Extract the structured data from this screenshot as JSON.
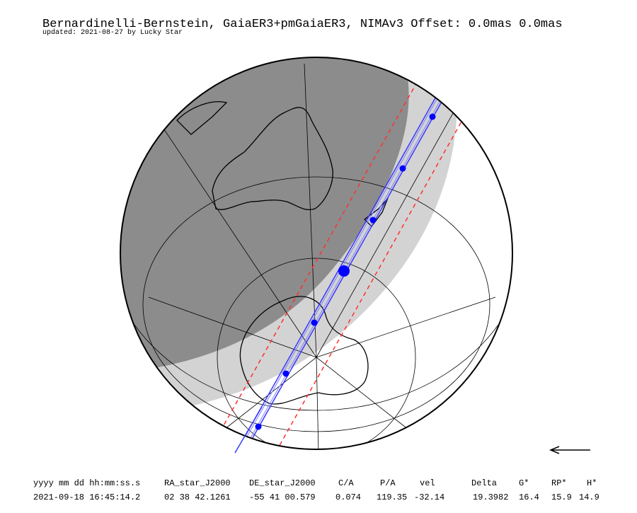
{
  "header": {
    "title": "Bernardinelli-Bernstein, GaiaER3+pmGaiaER3, NIMAv3  Offset: 0.0mas 0.0mas",
    "subtitle": "updated: 2021-08-27 by Lucky Star"
  },
  "table": {
    "columns": [
      "yyyy mm dd hh:mm:ss.s",
      "RA_star_J2000",
      "DE_star_J2000",
      "C/A",
      "P/A",
      "vel",
      "Delta",
      "G*",
      "RP*",
      "H*"
    ],
    "rows": [
      [
        "2021-09-18 16:45:14.2",
        "02 38 42.1261",
        "-55 41 00.579",
        "0.074",
        "119.35",
        "-32.14",
        "19.3982",
        "16.4",
        "15.9",
        "14.9"
      ]
    ]
  }
}
